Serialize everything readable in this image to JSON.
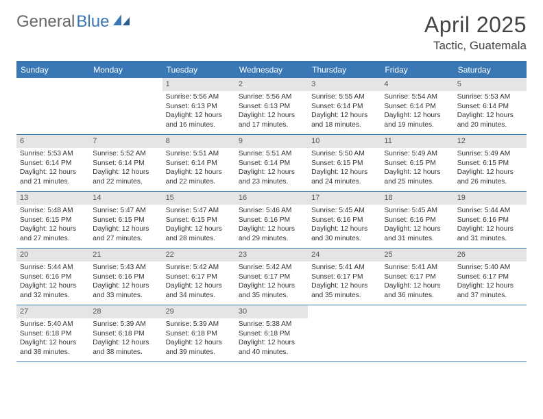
{
  "logo": {
    "part1": "General",
    "part2": "Blue"
  },
  "title": "April 2025",
  "location": "Tactic, Guatemala",
  "colors": {
    "accent": "#3a78b5",
    "daynum_bg": "#e5e5e5",
    "text": "#333333",
    "background": "#ffffff"
  },
  "weekdays": [
    "Sunday",
    "Monday",
    "Tuesday",
    "Wednesday",
    "Thursday",
    "Friday",
    "Saturday"
  ],
  "weeks": [
    [
      {
        "empty": true
      },
      {
        "empty": true
      },
      {
        "num": "1",
        "sunrise": "5:56 AM",
        "sunset": "6:13 PM",
        "daylight": "12 hours and 16 minutes."
      },
      {
        "num": "2",
        "sunrise": "5:56 AM",
        "sunset": "6:13 PM",
        "daylight": "12 hours and 17 minutes."
      },
      {
        "num": "3",
        "sunrise": "5:55 AM",
        "sunset": "6:14 PM",
        "daylight": "12 hours and 18 minutes."
      },
      {
        "num": "4",
        "sunrise": "5:54 AM",
        "sunset": "6:14 PM",
        "daylight": "12 hours and 19 minutes."
      },
      {
        "num": "5",
        "sunrise": "5:53 AM",
        "sunset": "6:14 PM",
        "daylight": "12 hours and 20 minutes."
      }
    ],
    [
      {
        "num": "6",
        "sunrise": "5:53 AM",
        "sunset": "6:14 PM",
        "daylight": "12 hours and 21 minutes."
      },
      {
        "num": "7",
        "sunrise": "5:52 AM",
        "sunset": "6:14 PM",
        "daylight": "12 hours and 22 minutes."
      },
      {
        "num": "8",
        "sunrise": "5:51 AM",
        "sunset": "6:14 PM",
        "daylight": "12 hours and 22 minutes."
      },
      {
        "num": "9",
        "sunrise": "5:51 AM",
        "sunset": "6:14 PM",
        "daylight": "12 hours and 23 minutes."
      },
      {
        "num": "10",
        "sunrise": "5:50 AM",
        "sunset": "6:15 PM",
        "daylight": "12 hours and 24 minutes."
      },
      {
        "num": "11",
        "sunrise": "5:49 AM",
        "sunset": "6:15 PM",
        "daylight": "12 hours and 25 minutes."
      },
      {
        "num": "12",
        "sunrise": "5:49 AM",
        "sunset": "6:15 PM",
        "daylight": "12 hours and 26 minutes."
      }
    ],
    [
      {
        "num": "13",
        "sunrise": "5:48 AM",
        "sunset": "6:15 PM",
        "daylight": "12 hours and 27 minutes."
      },
      {
        "num": "14",
        "sunrise": "5:47 AM",
        "sunset": "6:15 PM",
        "daylight": "12 hours and 27 minutes."
      },
      {
        "num": "15",
        "sunrise": "5:47 AM",
        "sunset": "6:15 PM",
        "daylight": "12 hours and 28 minutes."
      },
      {
        "num": "16",
        "sunrise": "5:46 AM",
        "sunset": "6:16 PM",
        "daylight": "12 hours and 29 minutes."
      },
      {
        "num": "17",
        "sunrise": "5:45 AM",
        "sunset": "6:16 PM",
        "daylight": "12 hours and 30 minutes."
      },
      {
        "num": "18",
        "sunrise": "5:45 AM",
        "sunset": "6:16 PM",
        "daylight": "12 hours and 31 minutes."
      },
      {
        "num": "19",
        "sunrise": "5:44 AM",
        "sunset": "6:16 PM",
        "daylight": "12 hours and 31 minutes."
      }
    ],
    [
      {
        "num": "20",
        "sunrise": "5:44 AM",
        "sunset": "6:16 PM",
        "daylight": "12 hours and 32 minutes."
      },
      {
        "num": "21",
        "sunrise": "5:43 AM",
        "sunset": "6:16 PM",
        "daylight": "12 hours and 33 minutes."
      },
      {
        "num": "22",
        "sunrise": "5:42 AM",
        "sunset": "6:17 PM",
        "daylight": "12 hours and 34 minutes."
      },
      {
        "num": "23",
        "sunrise": "5:42 AM",
        "sunset": "6:17 PM",
        "daylight": "12 hours and 35 minutes."
      },
      {
        "num": "24",
        "sunrise": "5:41 AM",
        "sunset": "6:17 PM",
        "daylight": "12 hours and 35 minutes."
      },
      {
        "num": "25",
        "sunrise": "5:41 AM",
        "sunset": "6:17 PM",
        "daylight": "12 hours and 36 minutes."
      },
      {
        "num": "26",
        "sunrise": "5:40 AM",
        "sunset": "6:17 PM",
        "daylight": "12 hours and 37 minutes."
      }
    ],
    [
      {
        "num": "27",
        "sunrise": "5:40 AM",
        "sunset": "6:18 PM",
        "daylight": "12 hours and 38 minutes."
      },
      {
        "num": "28",
        "sunrise": "5:39 AM",
        "sunset": "6:18 PM",
        "daylight": "12 hours and 38 minutes."
      },
      {
        "num": "29",
        "sunrise": "5:39 AM",
        "sunset": "6:18 PM",
        "daylight": "12 hours and 39 minutes."
      },
      {
        "num": "30",
        "sunrise": "5:38 AM",
        "sunset": "6:18 PM",
        "daylight": "12 hours and 40 minutes."
      },
      {
        "empty": true
      },
      {
        "empty": true
      },
      {
        "empty": true
      }
    ]
  ],
  "labels": {
    "sunrise_prefix": "Sunrise: ",
    "sunset_prefix": "Sunset: ",
    "daylight_prefix": "Daylight: "
  }
}
